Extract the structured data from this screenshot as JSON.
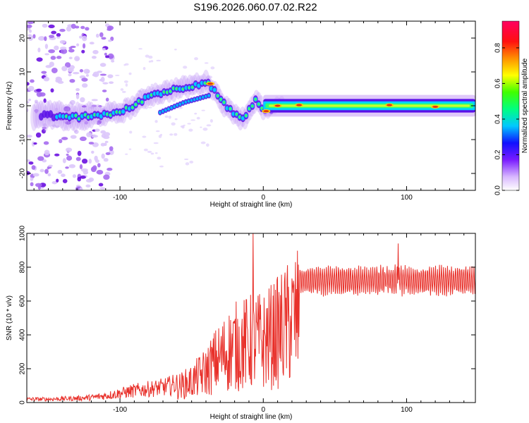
{
  "title": "S196.2026.060.07.02.R22",
  "colors": {
    "signal": "#e8302a",
    "ridge_core": "#e0301a",
    "scatter": "#8a2be2",
    "axis": "#000000"
  },
  "chart_data": [
    {
      "type": "heatmap",
      "name": "spectrogram",
      "xlabel": "Height of straight line (km)",
      "ylabel": "Frequency (Hz)",
      "xlim": [
        -165,
        148
      ],
      "ylim": [
        -25,
        25
      ],
      "xticks": [
        -100,
        0,
        100
      ],
      "yticks": [
        -20,
        -10,
        0,
        10,
        20
      ],
      "colorbar": {
        "label": "Normalized spectral amplitude",
        "range": [
          0.0,
          0.95
        ],
        "ticks": [
          0.0,
          0.2,
          0.4,
          0.6,
          0.8
        ],
        "tick_labels": [
          "0.0",
          "0.2",
          "0.4",
          "0.6",
          "0.8"
        ],
        "colormap": "rainbow (white-violet-blue-cyan-green-yellow-red-magenta)"
      },
      "ridge": {
        "description": "dominant frequency track",
        "x": [
          -140,
          -130,
          -120,
          -110,
          -100,
          -90,
          -80,
          -70,
          -60,
          -50,
          -45,
          -40,
          -35,
          -30,
          -25,
          -20,
          -15,
          -12,
          -8,
          -5,
          0,
          5,
          10,
          20,
          40,
          60,
          80,
          100,
          120,
          148
        ],
        "y": [
          -3,
          -3.5,
          -3,
          -2.5,
          -2,
          0,
          3,
          4,
          5,
          6,
          6.5,
          7,
          5,
          2,
          -1,
          -2,
          -4,
          -3,
          0,
          2,
          -1.5,
          -1,
          0,
          0.2,
          0,
          0,
          0,
          -0.3,
          -0.5,
          -0.5
        ]
      }
    },
    {
      "type": "line",
      "name": "snr",
      "xlabel": "Height of straight line (km)",
      "ylabel": "SNR (10 * v/v)",
      "xlim": [
        -165,
        148
      ],
      "ylim": [
        0,
        1000
      ],
      "xticks": [
        -100,
        0,
        100
      ],
      "yticks": [
        0,
        200,
        400,
        600,
        800,
        1000
      ],
      "series": [
        {
          "name": "SNR",
          "envelope_x": [
            -165,
            -150,
            -130,
            -120,
            -110,
            -100,
            -90,
            -80,
            -70,
            -60,
            -50,
            -40,
            -35,
            -30,
            -25,
            -20,
            -15,
            -10,
            -5,
            0,
            10,
            20,
            30,
            40,
            60,
            80,
            100,
            120,
            148
          ],
          "envelope_y": [
            20,
            20,
            25,
            30,
            40,
            55,
            70,
            80,
            90,
            110,
            150,
            220,
            280,
            320,
            370,
            400,
            410,
            430,
            440,
            440,
            500,
            580,
            680,
            720,
            740,
            740,
            730,
            730,
            730
          ],
          "spikes_x": [
            -7,
            94
          ],
          "spikes_y": [
            1000,
            940
          ]
        }
      ]
    }
  ]
}
